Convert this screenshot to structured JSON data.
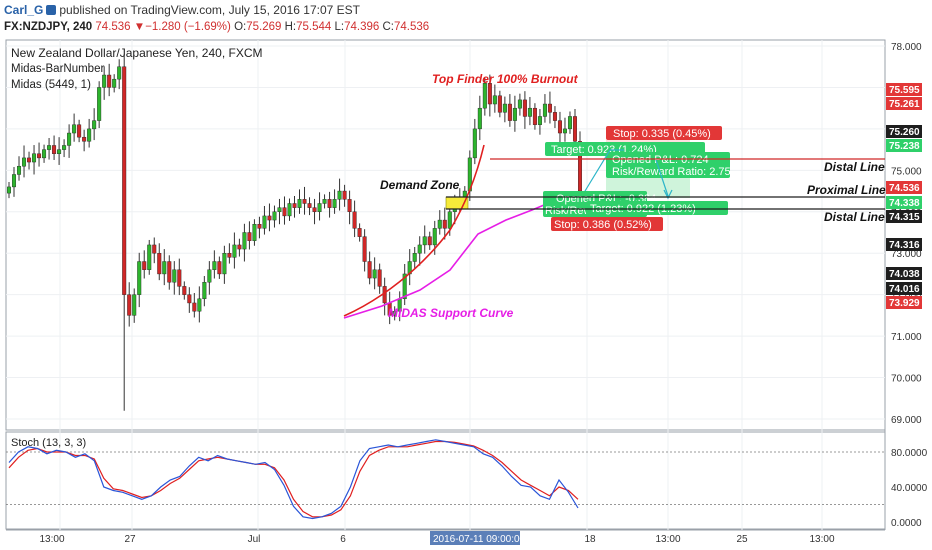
{
  "header": {
    "user": "Carl_G",
    "published": "published on TradingView.com, July 15, 2016 17:07 EST",
    "symbol": "FX:NZDJPY, 240",
    "last": "74.536",
    "change": "−1.280 (−1.69%)",
    "o_label": "O:",
    "o": "75.269",
    "h_label": "H:",
    "h": "75.544",
    "l_label": "L:",
    "l": "74.396",
    "c_label": "C:",
    "c": "74.536"
  },
  "legend": {
    "title": "New Zealand Dollar/Japanese Yen, 240, FXCM",
    "ind1": "Midas-BarNumber",
    "ind2": "Midas (5449, 1)"
  },
  "colors": {
    "up": "#2db52d",
    "down": "#d02727",
    "midas": "#e61ee6",
    "trend": "#e02020",
    "zone": "#f6ea3a",
    "profit": "#2fd06a",
    "loss": "#e23737",
    "target": "#2bb5c8"
  },
  "annotations": {
    "top_finder": "Top Finder 100% Burnout",
    "demand_zone": "Demand Zone",
    "midas_curve": "MIDAS Support Curve",
    "distal_top": "Distal Line",
    "proximal": "Proximal Line",
    "distal_bottom": "Distal Line",
    "short_stop": "Stop: 0.335 (0.45%)",
    "short_target": "Target: 0.923 (1.24%)",
    "short_open": "Opened P&L: 0.724",
    "short_rr": "Risk/Reward Ratio: 2.75",
    "long_open": "Opened P&L: -0.384",
    "long_rr": "Risk/Reward Ratio: 2.39",
    "long_target": "Target: 0.922 (1.23%)",
    "long_stop": "Stop: 0.386 (0.52%)"
  },
  "chart_data": [
    {
      "type": "candlestick",
      "title": "New Zealand Dollar/Japanese Yen, 240, FXCM",
      "ylim": [
        68.8,
        78.1
      ],
      "y_ticks": [
        "78.000",
        "77.000",
        "76.000",
        "75.000",
        "74.000",
        "73.000",
        "72.000",
        "71.000",
        "70.000",
        "69.000"
      ],
      "price_labels": [
        {
          "value": "75.595",
          "kind": "red"
        },
        {
          "value": "75.261",
          "kind": "red"
        },
        {
          "value": "75.260",
          "kind": "black"
        },
        {
          "value": "75.238",
          "kind": "green"
        },
        {
          "value": "74.536",
          "kind": "red"
        },
        {
          "value": "74.338",
          "kind": "green"
        },
        {
          "value": "74.315",
          "kind": "black"
        },
        {
          "value": "74.316",
          "kind": "black"
        },
        {
          "value": "74.038",
          "kind": "black"
        },
        {
          "value": "74.016",
          "kind": "black"
        },
        {
          "value": "73.929",
          "kind": "red"
        }
      ],
      "x_ticks": [
        "13:00",
        "27",
        "Jul",
        "6",
        "2016-07-11 09:00:00",
        "18",
        "13:00",
        "25",
        "13:00"
      ],
      "levels": {
        "distal_top": 75.26,
        "proximal": 74.338,
        "distal_bottom": 74.02
      },
      "close": [
        74.6,
        74.9,
        75.1,
        75.3,
        75.2,
        75.4,
        75.3,
        75.5,
        75.6,
        75.4,
        75.5,
        75.6,
        75.9,
        76.1,
        75.8,
        75.7,
        76.0,
        76.2,
        77.0,
        77.3,
        77.0,
        77.2,
        77.5,
        72.0,
        71.5,
        72.0,
        72.8,
        72.6,
        73.2,
        73.0,
        72.5,
        72.8,
        72.3,
        72.6,
        72.2,
        72.0,
        71.8,
        71.6,
        71.9,
        72.3,
        72.6,
        72.8,
        72.5,
        73.0,
        72.9,
        73.2,
        73.1,
        73.5,
        73.3,
        73.7,
        73.6,
        73.9,
        73.8,
        74.0,
        74.1,
        73.9,
        74.2,
        74.1,
        74.3,
        74.2,
        74.1,
        74.0,
        74.2,
        74.3,
        74.1,
        74.3,
        74.5,
        74.3,
        74.0,
        73.6,
        73.4,
        72.8,
        72.4,
        72.6,
        72.2,
        71.8,
        71.5,
        71.6,
        71.9,
        72.5,
        72.8,
        73.0,
        73.2,
        73.4,
        73.2,
        73.6,
        73.8,
        73.6,
        74.0,
        74.2,
        74.3,
        74.5,
        75.3,
        76.0,
        76.5,
        77.1,
        76.6,
        76.8,
        76.4,
        76.6,
        76.2,
        76.5,
        76.7,
        76.3,
        76.5,
        76.1,
        76.3,
        76.6,
        76.4,
        76.2,
        75.9,
        76.0,
        76.3,
        75.7,
        74.5
      ],
      "midas": [
        [
          344,
          318
        ],
        [
          382,
          306
        ],
        [
          420,
          290
        ],
        [
          450,
          270
        ],
        [
          478,
          234
        ],
        [
          506,
          220
        ],
        [
          532,
          210
        ],
        [
          556,
          200
        ],
        [
          580,
          197
        ]
      ],
      "stoch": {
        "name": "Stoch (13, 3, 3)",
        "ylim": [
          0,
          100
        ],
        "y_ticks": [
          "80.0000",
          "40.0000",
          "0.0000"
        ],
        "levels": [
          80,
          20
        ],
        "k": [
          68,
          80,
          86,
          84,
          78,
          82,
          80,
          74,
          78,
          70,
          40,
          36,
          34,
          30,
          26,
          30,
          40,
          48,
          52,
          64,
          74,
          70,
          76,
          72,
          70,
          68,
          66,
          68,
          60,
          42,
          18,
          6,
          4,
          6,
          10,
          18,
          40,
          70,
          84,
          86,
          88,
          86,
          88,
          90,
          92,
          94,
          92,
          90,
          88,
          86,
          78,
          74,
          64,
          52,
          42,
          40,
          30,
          26,
          48,
          34,
          16
        ],
        "d": [
          62,
          74,
          82,
          84,
          80,
          80,
          80,
          76,
          76,
          72,
          50,
          38,
          36,
          32,
          28,
          30,
          36,
          44,
          50,
          60,
          70,
          72,
          74,
          72,
          70,
          68,
          66,
          66,
          62,
          48,
          26,
          12,
          6,
          6,
          8,
          14,
          30,
          58,
          76,
          82,
          86,
          86,
          86,
          88,
          90,
          92,
          92,
          91,
          89,
          87,
          82,
          76,
          68,
          58,
          48,
          42,
          36,
          30,
          40,
          36,
          26
        ]
      }
    }
  ]
}
